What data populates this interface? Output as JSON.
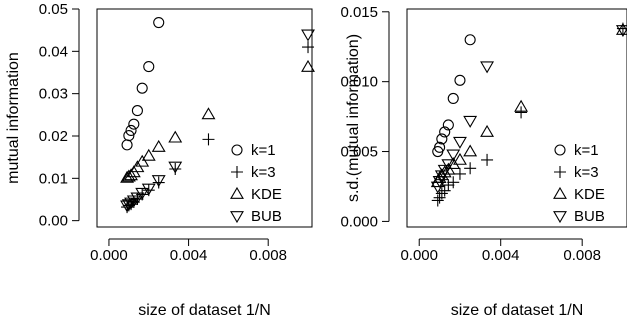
{
  "chart_data": [
    {
      "type": "scatter",
      "xlabel": "size of dataset 1/N",
      "ylabel": "mutual information",
      "xlim": [
        -0.0006,
        0.0102
      ],
      "ylim": [
        -0.0015,
        0.05
      ],
      "xticks": [
        "0.000",
        "0.004",
        "0.008"
      ],
      "xtick_values": [
        0.0,
        0.004,
        0.008
      ],
      "yticks": [
        "0.00",
        "0.01",
        "0.02",
        "0.03",
        "0.04",
        "0.05"
      ],
      "ytick_values": [
        0.0,
        0.01,
        0.02,
        0.03,
        0.04,
        0.05
      ],
      "legend_position": "bottom-right",
      "series": [
        {
          "name": "k=1",
          "marker": "circle",
          "points": [
            [
              0.00091,
              0.0179
            ],
            [
              0.001,
              0.0201
            ],
            [
              0.00111,
              0.0213
            ],
            [
              0.00125,
              0.0228
            ],
            [
              0.00143,
              0.026
            ],
            [
              0.00167,
              0.0313
            ],
            [
              0.002,
              0.0364
            ],
            [
              0.0025,
              0.0468
            ]
          ]
        },
        {
          "name": "k=3",
          "marker": "plus",
          "points": [
            [
              0.00091,
              0.0032
            ],
            [
              0.001,
              0.0036
            ],
            [
              0.00111,
              0.0039
            ],
            [
              0.00125,
              0.0044
            ],
            [
              0.00143,
              0.0051
            ],
            [
              0.00167,
              0.0062
            ],
            [
              0.002,
              0.0072
            ],
            [
              0.0025,
              0.009
            ],
            [
              0.00333,
              0.0122
            ],
            [
              0.005,
              0.0192
            ],
            [
              0.01,
              0.041
            ]
          ]
        },
        {
          "name": "KDE",
          "marker": "triangle-up",
          "points": [
            [
              0.00091,
              0.0101
            ],
            [
              0.001,
              0.0104
            ],
            [
              0.00111,
              0.0107
            ],
            [
              0.00125,
              0.0114
            ],
            [
              0.00143,
              0.0126
            ],
            [
              0.00167,
              0.0139
            ],
            [
              0.002,
              0.0153
            ],
            [
              0.0025,
              0.0174
            ],
            [
              0.00333,
              0.0196
            ],
            [
              0.005,
              0.0251
            ],
            [
              0.01,
              0.0363
            ]
          ]
        },
        {
          "name": "BUB",
          "marker": "triangle-down",
          "points": [
            [
              0.00091,
              0.0036
            ],
            [
              0.001,
              0.0039
            ],
            [
              0.00111,
              0.0043
            ],
            [
              0.00125,
              0.0048
            ],
            [
              0.00143,
              0.0055
            ],
            [
              0.00167,
              0.0066
            ],
            [
              0.002,
              0.0076
            ],
            [
              0.0025,
              0.0096
            ],
            [
              0.00333,
              0.0128
            ],
            [
              0.01,
              0.044
            ]
          ]
        }
      ]
    },
    {
      "type": "scatter",
      "xlabel": "size of dataset 1/N",
      "ylabel": "s.d.(mutual information)",
      "xlim": [
        -0.0006,
        0.0102
      ],
      "ylim": [
        -0.0004,
        0.0152
      ],
      "xticks": [
        "0.000",
        "0.004",
        "0.008"
      ],
      "xtick_values": [
        0.0,
        0.004,
        0.008
      ],
      "yticks": [
        "0.000",
        "0.005",
        "0.010",
        "0.015"
      ],
      "ytick_values": [
        0.0,
        0.005,
        0.01,
        0.015
      ],
      "legend_position": "bottom-right",
      "series": [
        {
          "name": "k=1",
          "marker": "circle",
          "points": [
            [
              0.00091,
              0.005
            ],
            [
              0.001,
              0.0053
            ],
            [
              0.00111,
              0.0059
            ],
            [
              0.00125,
              0.0064
            ],
            [
              0.00143,
              0.0069
            ],
            [
              0.00167,
              0.0088
            ],
            [
              0.002,
              0.0101
            ],
            [
              0.0025,
              0.013
            ]
          ]
        },
        {
          "name": "k=3",
          "marker": "plus",
          "points": [
            [
              0.00091,
              0.0015
            ],
            [
              0.001,
              0.0017
            ],
            [
              0.00111,
              0.002
            ],
            [
              0.00125,
              0.0022
            ],
            [
              0.00143,
              0.0026
            ],
            [
              0.00167,
              0.0028
            ],
            [
              0.002,
              0.0034
            ],
            [
              0.0025,
              0.0038
            ],
            [
              0.00333,
              0.0044
            ],
            [
              0.005,
              0.0078
            ],
            [
              0.01,
              0.0138
            ]
          ]
        },
        {
          "name": "KDE",
          "marker": "triangle-up",
          "points": [
            [
              0.00091,
              0.0028
            ],
            [
              0.001,
              0.0031
            ],
            [
              0.00111,
              0.0033
            ],
            [
              0.00125,
              0.0035
            ],
            [
              0.00143,
              0.0037
            ],
            [
              0.00167,
              0.0041
            ],
            [
              0.002,
              0.0044
            ],
            [
              0.0025,
              0.005
            ],
            [
              0.00333,
              0.0064
            ],
            [
              0.005,
              0.0082
            ],
            [
              0.01,
              0.0137
            ]
          ]
        },
        {
          "name": "BUB",
          "marker": "triangle-down",
          "points": [
            [
              0.00091,
              0.0025
            ],
            [
              0.001,
              0.0029
            ],
            [
              0.00111,
              0.0033
            ],
            [
              0.00125,
              0.0037
            ],
            [
              0.00143,
              0.0041
            ],
            [
              0.00167,
              0.0048
            ],
            [
              0.002,
              0.0057
            ],
            [
              0.0025,
              0.0072
            ],
            [
              0.00333,
              0.0111
            ],
            [
              0.01,
              0.0137
            ]
          ]
        }
      ]
    }
  ]
}
